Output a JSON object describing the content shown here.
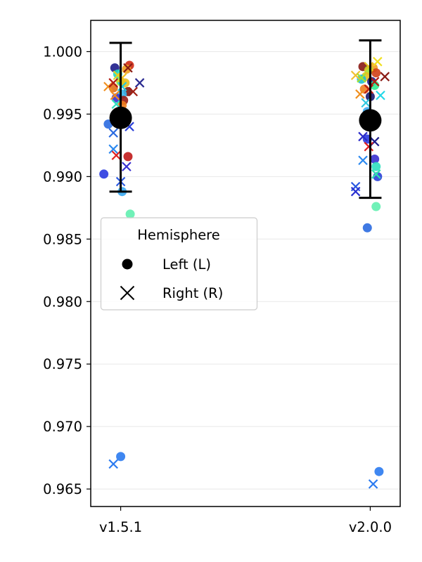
{
  "chart_data": {
    "type": "scatter",
    "title": "",
    "xlabel": "",
    "ylabel": "",
    "categories": [
      "v1.5.1",
      "v2.0.0"
    ],
    "ylim": [
      0.9636,
      1.0025
    ],
    "yticks": [
      0.965,
      0.97,
      0.975,
      0.98,
      0.985,
      0.99,
      0.995,
      1.0
    ],
    "ytick_labels": [
      "0.965",
      "0.970",
      "0.975",
      "0.980",
      "0.985",
      "0.990",
      "0.995",
      "1.000"
    ],
    "grid": "horizontal",
    "legend": {
      "title": "Hemisphere",
      "placement": "center-left",
      "entries": [
        {
          "label": "Left (L)",
          "marker": "circle"
        },
        {
          "label": "Right (R)",
          "marker": "x"
        }
      ]
    },
    "summary": [
      {
        "category": "v1.5.1",
        "mean": 0.9947,
        "lower": 0.9888,
        "upper": 1.0007
      },
      {
        "category": "v2.0.0",
        "mean": 0.9945,
        "lower": 0.9883,
        "upper": 1.0009
      }
    ],
    "points": [
      {
        "c": 0,
        "dx": -0.0234,
        "y": 0.9987,
        "m": "L",
        "color": "#1c1c8a"
      },
      {
        "c": 0,
        "dx": 0.0352,
        "y": 0.9989,
        "m": "L",
        "color": "#d12a14"
      },
      {
        "c": 0,
        "dx": 0.0234,
        "y": 0.9986,
        "m": "L",
        "color": "#f0a020"
      },
      {
        "c": 0,
        "dx": -0.0117,
        "y": 0.9982,
        "m": "L",
        "color": "#22d8c0"
      },
      {
        "c": 0,
        "dx": 0.0,
        "y": 0.9976,
        "m": "L",
        "color": "#a6e22e"
      },
      {
        "c": 0,
        "dx": 0.0176,
        "y": 0.9975,
        "m": "L",
        "color": "#e8c020"
      },
      {
        "c": 0,
        "dx": -0.0293,
        "y": 0.9971,
        "m": "L",
        "color": "#e07018"
      },
      {
        "c": 0,
        "dx": 0.0293,
        "y": 0.9968,
        "m": "L",
        "color": "#7c1a14"
      },
      {
        "c": 0,
        "dx": 0.0059,
        "y": 0.9966,
        "m": "L",
        "color": "#38b8f0"
      },
      {
        "c": 0,
        "dx": -0.0176,
        "y": 0.9963,
        "m": "L",
        "color": "#3a30d0"
      },
      {
        "c": 0,
        "dx": 0.0117,
        "y": 0.9961,
        "m": "L",
        "color": "#9a1c14"
      },
      {
        "c": 0,
        "dx": 0.0059,
        "y": 0.9957,
        "m": "L",
        "color": "#f08020"
      },
      {
        "c": 0,
        "dx": -0.0059,
        "y": 0.9952,
        "m": "L",
        "color": "#30f090"
      },
      {
        "c": 0,
        "dx": -0.0498,
        "y": 0.9942,
        "m": "L",
        "color": "#2a6ae0"
      },
      {
        "c": 0,
        "dx": 0.0293,
        "y": 0.9916,
        "m": "L",
        "color": "#c01a1a"
      },
      {
        "c": 0,
        "dx": -0.0674,
        "y": 0.9902,
        "m": "L",
        "color": "#2a3ae0"
      },
      {
        "c": 0,
        "dx": 0.0059,
        "y": 0.9888,
        "m": "L",
        "color": "#3aa8f0"
      },
      {
        "c": 0,
        "dx": 0.0381,
        "y": 0.987,
        "m": "L",
        "color": "#60f0b0"
      },
      {
        "c": 0,
        "dx": 0.0,
        "y": 0.9676,
        "m": "L",
        "color": "#2a7af0"
      },
      {
        "c": 0,
        "dx": 0.0293,
        "y": 0.9987,
        "m": "R",
        "color": "#8a1a14"
      },
      {
        "c": 0,
        "dx": -0.0498,
        "y": 0.9972,
        "m": "R",
        "color": "#f09020"
      },
      {
        "c": 0,
        "dx": -0.0293,
        "y": 0.9975,
        "m": "R",
        "color": "#b01c14"
      },
      {
        "c": 0,
        "dx": -0.0117,
        "y": 0.9981,
        "m": "R",
        "color": "#e8d020"
      },
      {
        "c": 0,
        "dx": 0.0059,
        "y": 0.9979,
        "m": "R",
        "color": "#f0c020"
      },
      {
        "c": 0,
        "dx": 0.0059,
        "y": 0.9972,
        "m": "R",
        "color": "#22c8e0"
      },
      {
        "c": 0,
        "dx": 0.0762,
        "y": 0.9975,
        "m": "R",
        "color": "#2a2a90"
      },
      {
        "c": 0,
        "dx": 0.0498,
        "y": 0.9968,
        "m": "R",
        "color": "#a02014"
      },
      {
        "c": 0,
        "dx": -0.0234,
        "y": 0.9965,
        "m": "R",
        "color": "#f08a20"
      },
      {
        "c": 0,
        "dx": -0.0176,
        "y": 0.9958,
        "m": "R",
        "color": "#30e0c0"
      },
      {
        "c": 0,
        "dx": 0.0352,
        "y": 0.994,
        "m": "R",
        "color": "#2a40d8"
      },
      {
        "c": 0,
        "dx": -0.0293,
        "y": 0.9935,
        "m": "R",
        "color": "#2a6ae0"
      },
      {
        "c": 0,
        "dx": -0.0293,
        "y": 0.9922,
        "m": "R",
        "color": "#2a88f0"
      },
      {
        "c": 0,
        "dx": -0.0176,
        "y": 0.9917,
        "m": "R",
        "color": "#e02020"
      },
      {
        "c": 0,
        "dx": 0.0234,
        "y": 0.9908,
        "m": "R",
        "color": "#3a30d0"
      },
      {
        "c": 0,
        "dx": 0.0,
        "y": 0.9896,
        "m": "R",
        "color": "#2a58e0"
      },
      {
        "c": 0,
        "dx": -0.0293,
        "y": 0.967,
        "m": "R",
        "color": "#2a7af0"
      },
      {
        "c": 1,
        "dx": -0.0293,
        "y": 0.9988,
        "m": "L",
        "color": "#8a1a14"
      },
      {
        "c": 1,
        "dx": 0.0117,
        "y": 0.9987,
        "m": "L",
        "color": "#f0a020"
      },
      {
        "c": 1,
        "dx": -0.0059,
        "y": 0.9985,
        "m": "L",
        "color": "#a6e22e"
      },
      {
        "c": 1,
        "dx": 0.0234,
        "y": 0.9983,
        "m": "L",
        "color": "#d04018"
      },
      {
        "c": 1,
        "dx": -0.0176,
        "y": 0.998,
        "m": "L",
        "color": "#e8c020"
      },
      {
        "c": 1,
        "dx": -0.0352,
        "y": 0.9978,
        "m": "L",
        "color": "#20c0d0"
      },
      {
        "c": 1,
        "dx": 0.0059,
        "y": 0.9976,
        "m": "L",
        "color": "#1c1c8a"
      },
      {
        "c": 1,
        "dx": 0.0176,
        "y": 0.9973,
        "m": "L",
        "color": "#30f090"
      },
      {
        "c": 1,
        "dx": -0.0234,
        "y": 0.997,
        "m": "L",
        "color": "#f08020"
      },
      {
        "c": 1,
        "dx": 0.0,
        "y": 0.9964,
        "m": "L",
        "color": "#1a1a70"
      },
      {
        "c": 1,
        "dx": -0.0117,
        "y": 0.9952,
        "m": "L",
        "color": "#3aa8f0"
      },
      {
        "c": 1,
        "dx": -0.0117,
        "y": 0.993,
        "m": "L",
        "color": "#2a3ae0"
      },
      {
        "c": 1,
        "dx": 0.0176,
        "y": 0.9914,
        "m": "L",
        "color": "#3a30d0"
      },
      {
        "c": 1,
        "dx": 0.0234,
        "y": 0.9908,
        "m": "L",
        "color": "#30e0c0"
      },
      {
        "c": 1,
        "dx": 0.0293,
        "y": 0.99,
        "m": "L",
        "color": "#2a40d8"
      },
      {
        "c": 1,
        "dx": 0.0234,
        "y": 0.9876,
        "m": "L",
        "color": "#60f0b0"
      },
      {
        "c": 1,
        "dx": -0.0117,
        "y": 0.9859,
        "m": "L",
        "color": "#2a6ae0"
      },
      {
        "c": 1,
        "dx": 0.0352,
        "y": 0.9664,
        "m": "L",
        "color": "#2a7af0"
      },
      {
        "c": 1,
        "dx": 0.0293,
        "y": 0.9992,
        "m": "R",
        "color": "#f0e020"
      },
      {
        "c": 1,
        "dx": -0.0059,
        "y": 0.9988,
        "m": "R",
        "color": "#e8c020"
      },
      {
        "c": 1,
        "dx": -0.0586,
        "y": 0.9981,
        "m": "R",
        "color": "#f0c030"
      },
      {
        "c": 1,
        "dx": -0.0352,
        "y": 0.9979,
        "m": "R",
        "color": "#a6e22e"
      },
      {
        "c": 1,
        "dx": 0.0586,
        "y": 0.998,
        "m": "R",
        "color": "#8a1a14"
      },
      {
        "c": 1,
        "dx": 0.0176,
        "y": 0.9976,
        "m": "R",
        "color": "#b01c14"
      },
      {
        "c": 1,
        "dx": -0.0059,
        "y": 0.997,
        "m": "R",
        "color": "#c02014"
      },
      {
        "c": 1,
        "dx": 0.041,
        "y": 0.9965,
        "m": "R",
        "color": "#22d8e8"
      },
      {
        "c": 1,
        "dx": -0.041,
        "y": 0.9966,
        "m": "R",
        "color": "#f09020"
      },
      {
        "c": 1,
        "dx": -0.0176,
        "y": 0.9959,
        "m": "R",
        "color": "#30c8e0"
      },
      {
        "c": 1,
        "dx": -0.0293,
        "y": 0.9932,
        "m": "R",
        "color": "#2a2ac8"
      },
      {
        "c": 1,
        "dx": 0.0176,
        "y": 0.9928,
        "m": "R",
        "color": "#1c1c8a"
      },
      {
        "c": 1,
        "dx": -0.0059,
        "y": 0.9924,
        "m": "R",
        "color": "#e02020"
      },
      {
        "c": 1,
        "dx": -0.0293,
        "y": 0.9913,
        "m": "R",
        "color": "#2a88f0"
      },
      {
        "c": 1,
        "dx": 0.0234,
        "y": 0.9902,
        "m": "R",
        "color": "#30e0b0"
      },
      {
        "c": 1,
        "dx": -0.0586,
        "y": 0.9892,
        "m": "R",
        "color": "#2a58e0"
      },
      {
        "c": 1,
        "dx": -0.0586,
        "y": 0.9888,
        "m": "R",
        "color": "#2a30d0"
      },
      {
        "c": 1,
        "dx": 0.0117,
        "y": 0.9654,
        "m": "R",
        "color": "#2a7af0"
      }
    ]
  }
}
